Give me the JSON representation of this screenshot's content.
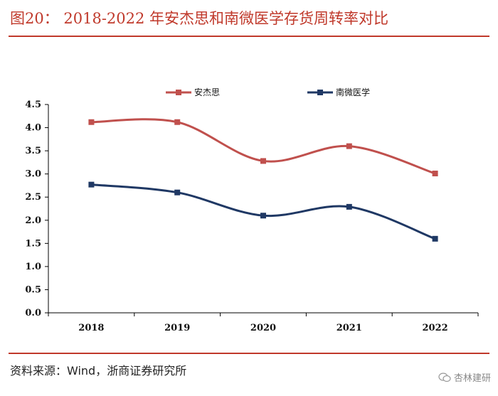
{
  "title": "图20： 2018-2022 年安杰思和南微医学存货周转率对比",
  "source": "资料来源：Wind，浙商证券研究所",
  "watermark": "杏林建研",
  "colors": {
    "accent": "#c0392b",
    "series1": "#c0504d",
    "series2": "#1f3864"
  },
  "chart_data": {
    "type": "line",
    "categories": [
      "2018",
      "2019",
      "2020",
      "2021",
      "2022"
    ],
    "series": [
      {
        "name": "安杰思",
        "values": [
          4.12,
          4.12,
          3.28,
          3.6,
          3.01
        ]
      },
      {
        "name": "南微医学",
        "values": [
          2.77,
          2.6,
          2.1,
          2.29,
          1.6
        ]
      }
    ],
    "ylim": [
      0,
      4.5
    ],
    "yticks": [
      "0.0",
      "0.5",
      "1.0",
      "1.5",
      "2.0",
      "2.5",
      "3.0",
      "3.5",
      "4.0",
      "4.5"
    ],
    "grid": false,
    "legend": "top-center",
    "smooth": true
  }
}
